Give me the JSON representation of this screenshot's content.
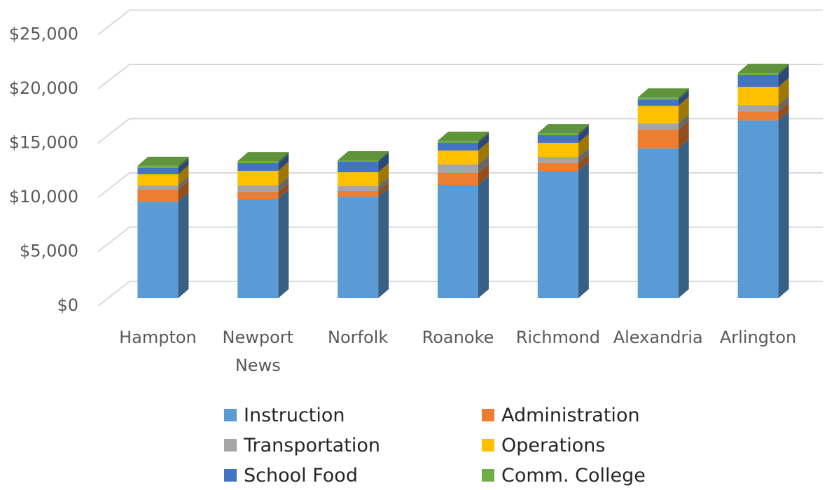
{
  "chart_data": {
    "type": "bar",
    "stacked": true,
    "three_d": true,
    "categories": [
      "Hampton",
      "Newport News",
      "Norfolk",
      "Roanoke",
      "Richmond",
      "Alexandria",
      "Arlington"
    ],
    "series": [
      {
        "name": "Instruction",
        "color": "#5b9bd5",
        "values": [
          8900,
          9160,
          9350,
          10450,
          11740,
          13800,
          16380
        ]
      },
      {
        "name": "Administration",
        "color": "#ed7d31",
        "values": [
          1100,
          650,
          520,
          1100,
          710,
          1740,
          840
        ]
      },
      {
        "name": "Transportation",
        "color": "#a5a5a5",
        "values": [
          390,
          580,
          450,
          770,
          580,
          580,
          580
        ]
      },
      {
        "name": "Operations",
        "color": "#ffc000",
        "values": [
          1030,
          1350,
          1290,
          1290,
          1290,
          1610,
          1680
        ]
      },
      {
        "name": "School Food",
        "color": "#4472c4",
        "values": [
          580,
          710,
          970,
          710,
          710,
          580,
          1100
        ]
      },
      {
        "name": "Comm. College",
        "color": "#70ad47",
        "values": [
          200,
          190,
          130,
          190,
          190,
          190,
          190
        ]
      }
    ],
    "ylim": [
      0,
      25000
    ],
    "yticks": [
      {
        "value": 0,
        "label": "$0"
      },
      {
        "value": 5000,
        "label": "$5,000"
      },
      {
        "value": 10000,
        "label": "$10,000"
      },
      {
        "value": 15000,
        "label": "$15,000"
      },
      {
        "value": 20000,
        "label": "$20,000"
      },
      {
        "value": 25000,
        "label": "$25,000"
      }
    ],
    "grid": true
  }
}
